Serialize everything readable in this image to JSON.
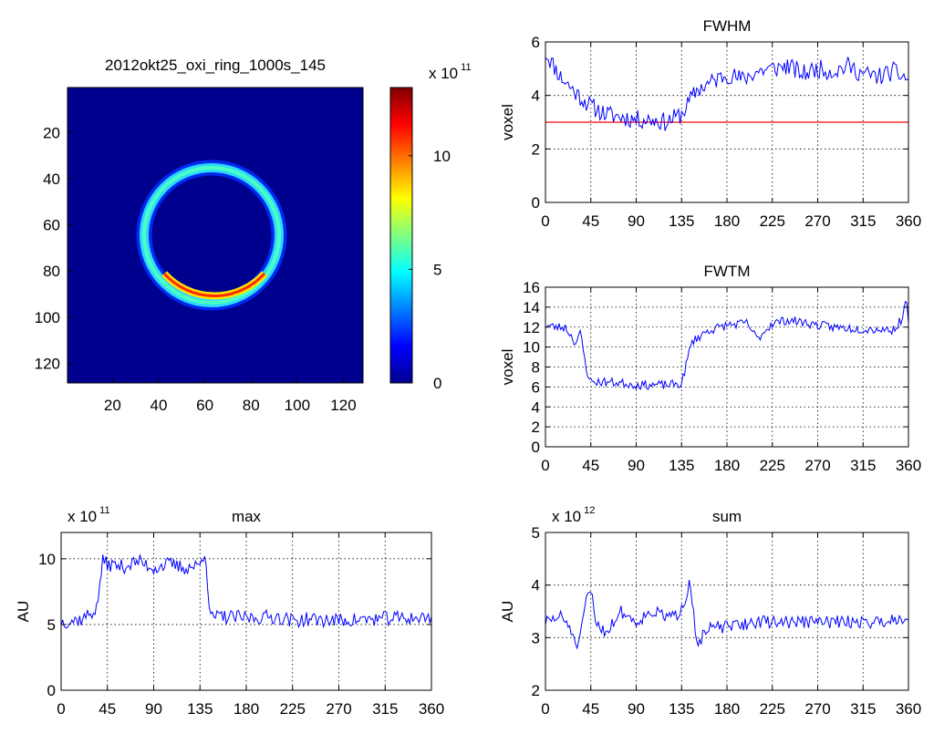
{
  "colorbar": {
    "colormap": "jet",
    "range": [
      0,
      13
    ],
    "ticks": [
      0,
      5,
      10
    ],
    "tick_labels": [
      "0",
      "5",
      "10"
    ],
    "exponent_base": "x 10",
    "exponent_power": "11"
  },
  "colors": {
    "series": "#0000ff",
    "reference_line": "#ff0000",
    "heatmap_background": "#00008f"
  },
  "chart_data": [
    {
      "type": "heatmap",
      "title": "2012okt25_oxi_ring_1000s_145",
      "xlabel": "",
      "ylabel": "",
      "xlim": [
        0.5,
        128.5
      ],
      "ylim": [
        128.5,
        0.5
      ],
      "x_tick_labels": [
        "20",
        "40",
        "60",
        "80",
        "100",
        "120"
      ],
      "y_tick_labels": [
        "20",
        "40",
        "60",
        "80",
        "100",
        "120"
      ],
      "grid": false,
      "description_values": {
        "ring_center": [
          66,
          64
        ],
        "ring_radius": 28.5,
        "ring_peak_value_x1e11": 5.5,
        "bright_arc_value_x1e11": 11,
        "background_value": 0
      }
    },
    {
      "type": "line",
      "title": "FWHM",
      "xlabel": "",
      "ylabel": "voxel",
      "xlim": [
        0,
        360
      ],
      "ylim": [
        0,
        6
      ],
      "x_tick_labels": [
        "0",
        "45",
        "90",
        "135",
        "180",
        "225",
        "270",
        "315",
        "360"
      ],
      "y_tick_labels": [
        "0",
        "2",
        "4",
        "6"
      ],
      "grid": true,
      "reference_line": 3,
      "series": [
        {
          "x": [
            0,
            15,
            30,
            45,
            60,
            75,
            90,
            105,
            120,
            135,
            150,
            165,
            180,
            195,
            210,
            225,
            240,
            255,
            270,
            285,
            300,
            315,
            330,
            345,
            360
          ],
          "y": [
            5.6,
            4.7,
            4.1,
            3.6,
            3.3,
            3.2,
            3.1,
            3.1,
            3.0,
            3.3,
            4.2,
            4.5,
            4.8,
            4.6,
            4.9,
            5.0,
            5.1,
            4.8,
            5.0,
            4.9,
            5.1,
            4.8,
            4.7,
            4.9,
            4.6
          ],
          "noise": 0.35,
          "seed": 11
        }
      ]
    },
    {
      "type": "line",
      "title": "FWTM",
      "xlabel": "",
      "ylabel": "voxel",
      "xlim": [
        0,
        360
      ],
      "ylim": [
        0,
        16
      ],
      "x_tick_labels": [
        "0",
        "45",
        "90",
        "135",
        "180",
        "225",
        "270",
        "315",
        "360"
      ],
      "y_tick_labels": [
        "0",
        "2",
        "4",
        "6",
        "8",
        "10",
        "12",
        "14",
        "16"
      ],
      "grid": true,
      "series": [
        {
          "x": [
            0,
            10,
            20,
            30,
            35,
            40,
            45,
            60,
            75,
            90,
            105,
            120,
            135,
            145,
            160,
            180,
            200,
            210,
            225,
            240,
            255,
            270,
            285,
            300,
            315,
            330,
            345,
            355,
            358,
            360
          ],
          "y": [
            12.2,
            12.0,
            12.0,
            10.4,
            11.4,
            8.0,
            6.5,
            6.5,
            6.4,
            6.2,
            6.2,
            6.2,
            6.3,
            10.5,
            11.6,
            12.2,
            12.4,
            10.8,
            12.4,
            12.7,
            12.5,
            12.2,
            12.0,
            11.9,
            11.8,
            11.8,
            11.7,
            13.0,
            15.8,
            12.0
          ],
          "noise": 0.45,
          "seed": 23
        }
      ]
    },
    {
      "type": "line",
      "title": "max",
      "xlabel": "",
      "ylabel": "AU",
      "xlim": [
        0,
        360
      ],
      "ylim": [
        0,
        12
      ],
      "exponent_base": "x 10",
      "exponent_power": "11",
      "x_tick_labels": [
        "0",
        "45",
        "90",
        "135",
        "180",
        "225",
        "270",
        "315",
        "360"
      ],
      "y_tick_labels": [
        "0",
        "5",
        "10"
      ],
      "grid": true,
      "series": [
        {
          "x": [
            0,
            20,
            35,
            40,
            45,
            60,
            75,
            90,
            105,
            120,
            135,
            140,
            145,
            150,
            180,
            210,
            225,
            240,
            270,
            300,
            330,
            360
          ],
          "y": [
            5.2,
            5.4,
            6.2,
            9.8,
            9.6,
            9.4,
            9.8,
            9.3,
            9.6,
            9.3,
            9.5,
            10.8,
            5.4,
            5.6,
            5.5,
            5.6,
            5.3,
            5.4,
            5.3,
            5.4,
            5.5,
            5.5
          ],
          "noise": 0.55,
          "seed": 37
        }
      ]
    },
    {
      "type": "line",
      "title": "sum",
      "xlabel": "",
      "ylabel": "AU",
      "xlim": [
        0,
        360
      ],
      "ylim": [
        2,
        5
      ],
      "exponent_base": "x 10",
      "exponent_power": "12",
      "x_tick_labels": [
        "0",
        "45",
        "90",
        "135",
        "180",
        "225",
        "270",
        "315",
        "360"
      ],
      "y_tick_labels": [
        "2",
        "3",
        "4",
        "5"
      ],
      "grid": true,
      "series": [
        {
          "x": [
            0,
            15,
            25,
            30,
            35,
            40,
            45,
            50,
            60,
            75,
            90,
            105,
            120,
            130,
            140,
            143,
            150,
            165,
            180,
            210,
            240,
            270,
            300,
            330,
            360
          ],
          "y": [
            3.3,
            3.4,
            3.2,
            2.8,
            3.0,
            3.7,
            3.9,
            3.3,
            3.1,
            3.5,
            3.3,
            3.5,
            3.4,
            3.4,
            3.8,
            4.2,
            2.9,
            3.2,
            3.2,
            3.3,
            3.3,
            3.3,
            3.3,
            3.3,
            3.4
          ],
          "noise": 0.12,
          "seed": 51
        }
      ]
    }
  ]
}
